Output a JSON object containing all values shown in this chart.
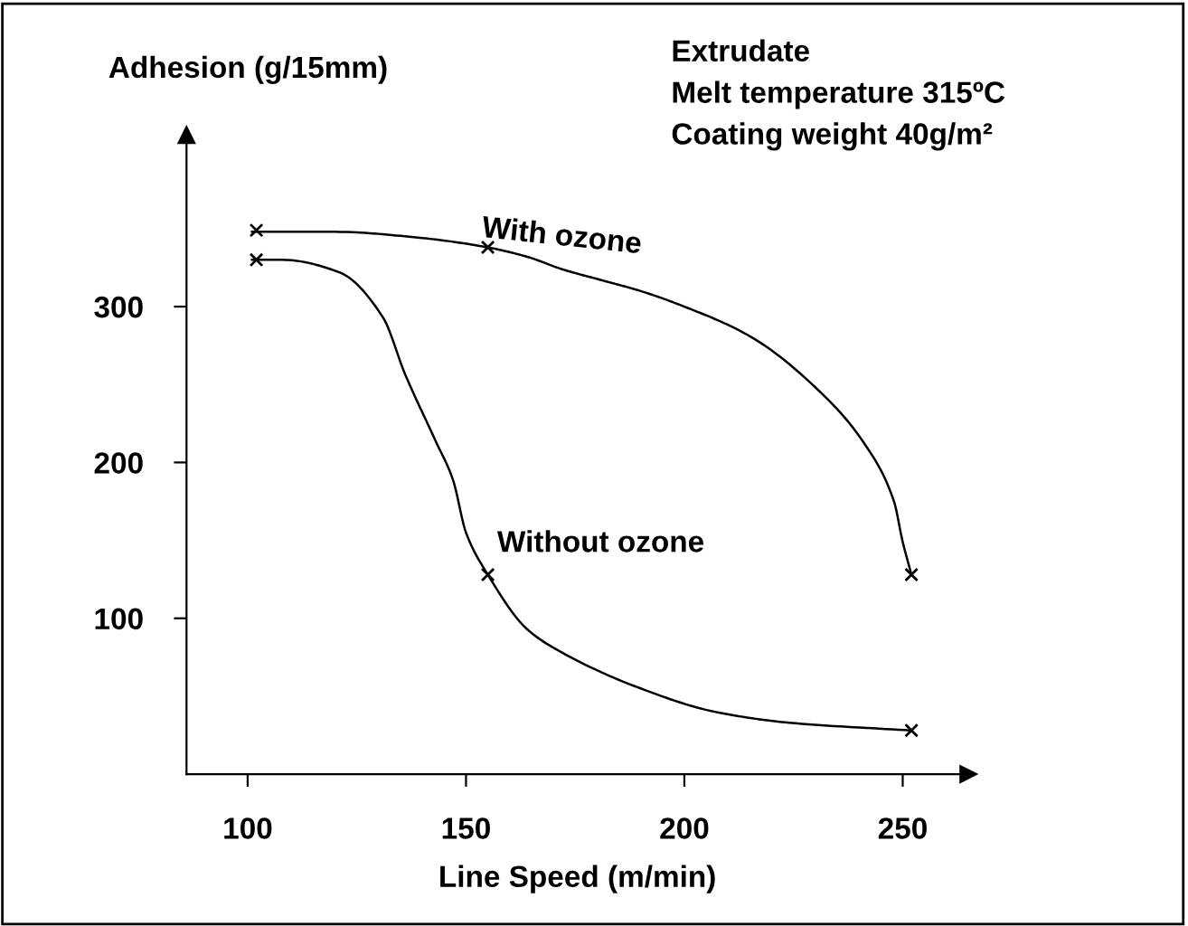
{
  "chart_data": {
    "type": "line",
    "xlabel": "Line Speed (m/min)",
    "ylabel": "Adhesion (g/15mm)",
    "xlim": [
      86,
      265
    ],
    "ylim": [
      0,
      410
    ],
    "xticks": [
      100,
      150,
      200,
      250
    ],
    "yticks": [
      100,
      200,
      300
    ],
    "grid": false,
    "legend": false,
    "series": [
      {
        "color": "#000000",
        "marker": "none",
        "x": [
          101,
          120,
          140,
          155,
          164,
          172,
          181,
          190,
          200,
          215,
          233,
          241,
          248,
          250,
          252
        ],
        "values": [
          348,
          348,
          344,
          338,
          332,
          324,
          317,
          310,
          300,
          281,
          240,
          213,
          175,
          149,
          128
        ]
      },
      {
        "color": "#000000",
        "marker": "none",
        "x": [
          101,
          108,
          121,
          131,
          136,
          143,
          147,
          150,
          155,
          164,
          172,
          190,
          207,
          224,
          252
        ],
        "values": [
          330,
          330,
          322,
          293,
          257,
          214,
          189,
          155,
          128,
          93,
          78,
          55,
          40,
          33,
          28
        ]
      },
      {
        "type": "scatter",
        "color": "#000000",
        "marker": "cross",
        "x": [
          102,
          155,
          252
        ],
        "values": [
          349,
          338,
          128
        ]
      },
      {
        "type": "scatter",
        "color": "#000000",
        "marker": "cross",
        "x": [
          102,
          155,
          252
        ],
        "values": [
          330,
          128,
          28
        ]
      }
    ],
    "annotations": [
      "With ozone",
      "Without ozone",
      "Extrudate",
      "Melt temperature 315ºC",
      "Coating weight 40g/m²"
    ]
  }
}
